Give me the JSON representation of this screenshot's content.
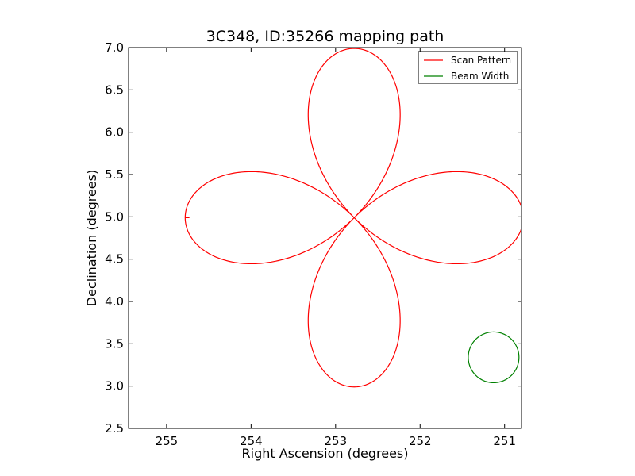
{
  "chart_data": {
    "type": "line",
    "title": "3C348, ID:35266 mapping path",
    "xlabel": "Right Ascension (degrees)",
    "ylabel": "Declination (degrees)",
    "xlim": [
      255.45,
      250.8
    ],
    "ylim": [
      2.5,
      7.0
    ],
    "x_inverted": true,
    "grid": false,
    "legend_position": "top-right",
    "xticks": [
      {
        "value": 255,
        "label": "255"
      },
      {
        "value": 254,
        "label": "254"
      },
      {
        "value": 253,
        "label": "253"
      },
      {
        "value": 252,
        "label": "252"
      },
      {
        "value": 251,
        "label": "251"
      }
    ],
    "yticks": [
      {
        "value": 2.5,
        "label": "2.5"
      },
      {
        "value": 3.0,
        "label": "3.0"
      },
      {
        "value": 3.5,
        "label": "3.5"
      },
      {
        "value": 4.0,
        "label": "4.0"
      },
      {
        "value": 4.5,
        "label": "4.5"
      },
      {
        "value": 5.0,
        "label": "5.0"
      },
      {
        "value": 5.5,
        "label": "5.5"
      },
      {
        "value": 6.0,
        "label": "6.0"
      },
      {
        "value": 6.5,
        "label": "6.5"
      },
      {
        "value": 7.0,
        "label": "7.0"
      }
    ],
    "series": [
      {
        "name": "Scan Pattern",
        "color": "#ff0000",
        "shape": "four-petal-rose",
        "center": [
          252.78,
          4.99
        ],
        "radius": 2.0,
        "start": [
          254.78,
          4.99
        ],
        "start_hook": [
          [
            254.73,
            4.99
          ]
        ]
      },
      {
        "name": "Beam Width",
        "color": "#008000",
        "shape": "circle",
        "center": [
          251.13,
          3.34
        ],
        "radius": 0.3
      }
    ]
  }
}
